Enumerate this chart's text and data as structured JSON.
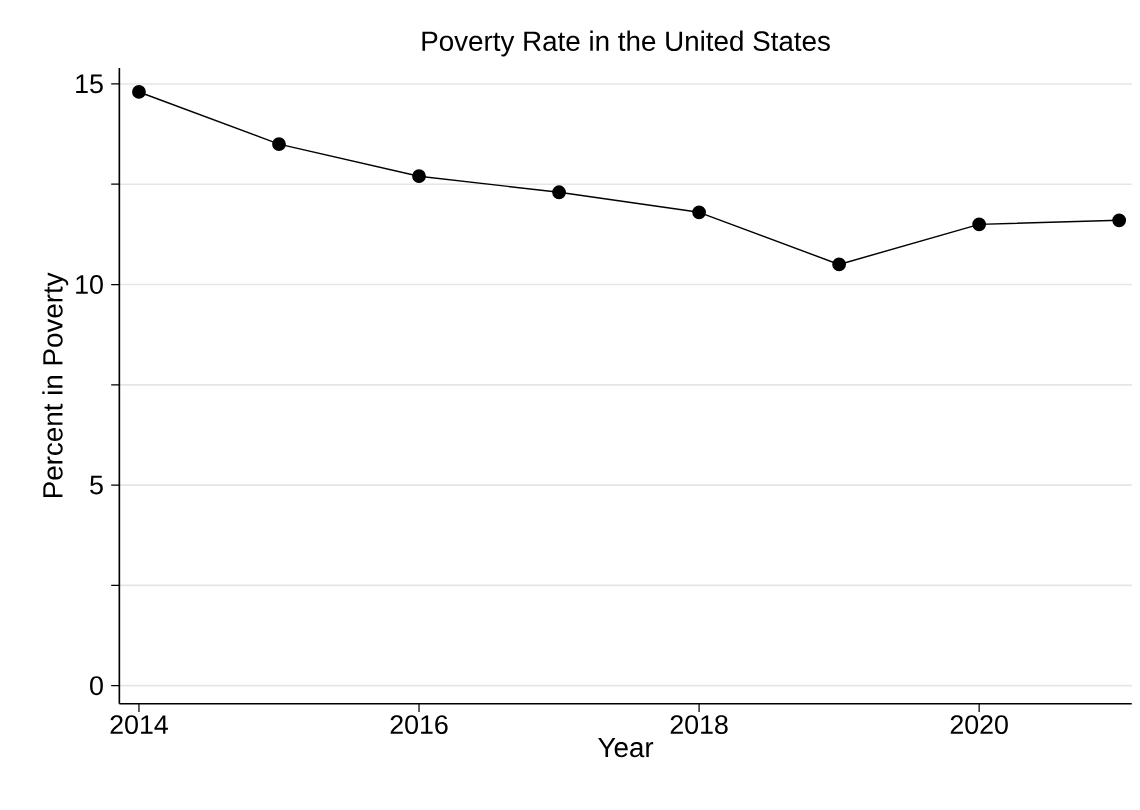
{
  "chart_data": {
    "type": "line",
    "title": "Poverty Rate in the United States",
    "xlabel": "Year",
    "ylabel": "Percent in Poverty",
    "x": [
      2014,
      2015,
      2016,
      2017,
      2018,
      2019,
      2020,
      2021
    ],
    "series": [
      {
        "color": "#000000",
        "values": [
          14.8,
          13.5,
          12.7,
          12.3,
          11.8,
          10.5,
          11.5,
          11.6
        ]
      }
    ],
    "xlim": [
      2013.86,
      2021.09
    ],
    "ylim": [
      -0.45,
      15.4
    ],
    "xticks": [
      2014,
      2016,
      2018,
      2020
    ],
    "yticks": [
      0,
      {
        "value": 2.5,
        "label": null
      },
      5,
      {
        "value": 7.5,
        "label": null
      },
      10,
      {
        "value": 12.5,
        "label": null
      },
      15
    ],
    "grid": "y",
    "marker": "circle",
    "line_style": "solid"
  }
}
